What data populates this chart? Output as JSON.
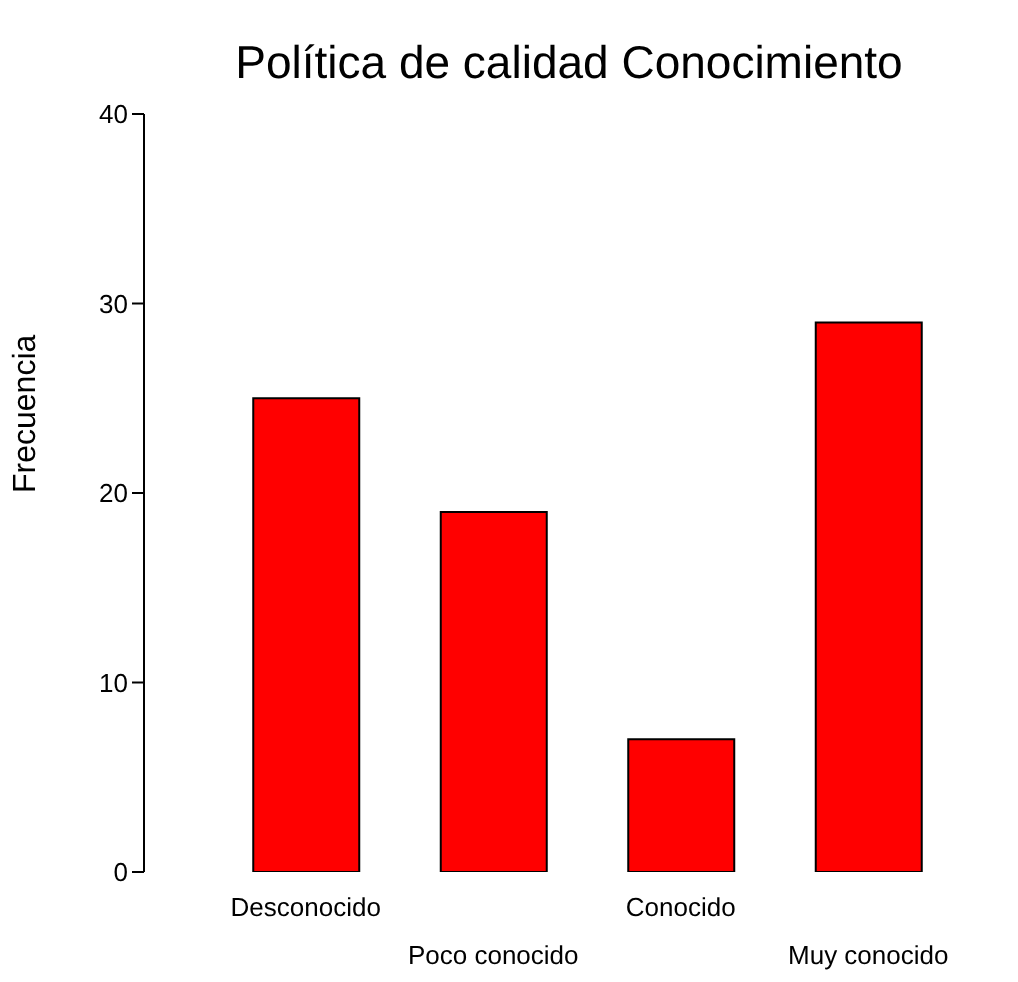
{
  "chart_data": {
    "type": "bar",
    "title": "Política de calidad Conocimiento",
    "ylabel": "Frecuencia",
    "categories": [
      "Desconocido",
      "Poco conocido",
      "Conocido",
      "Muy conocido"
    ],
    "values": [
      25,
      19,
      7,
      29
    ],
    "color": "#ff0000",
    "ylim": [
      0,
      40
    ],
    "yticks": [
      0,
      10,
      20,
      30,
      40
    ],
    "grid": false
  }
}
